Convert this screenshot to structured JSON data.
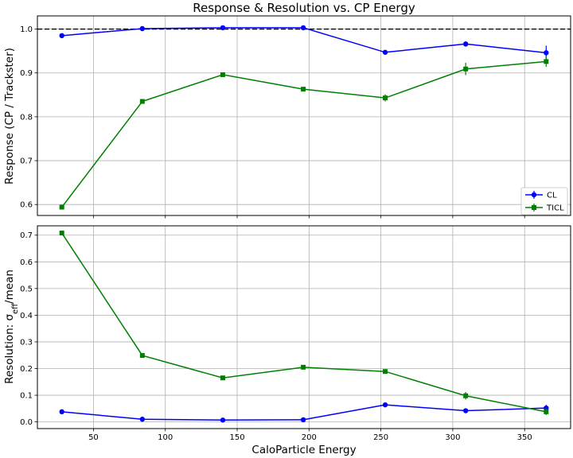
{
  "chart_data": [
    {
      "type": "line",
      "title": "Response & Resolution vs. CP Energy",
      "xlabel": "",
      "ylabel": "Response (CP / Trackster)",
      "xlim": [
        11,
        382
      ],
      "ylim": [
        0.575,
        1.03
      ],
      "xticks": [
        50,
        100,
        150,
        200,
        250,
        300,
        350
      ],
      "show_xtick_labels": false,
      "yticks": [
        0.6,
        0.7,
        0.8,
        0.9,
        1.0
      ],
      "ytick_labels": [
        "0.6",
        "0.7",
        "0.8",
        "0.9",
        "1.0"
      ],
      "grid": true,
      "reference_line": 1.0,
      "legend": "lower-right",
      "x": [
        28,
        84,
        140,
        196,
        253,
        309,
        365
      ],
      "series": [
        {
          "name": "CL",
          "color": "#0000ff",
          "marker": "circle",
          "values": [
            0.985,
            1.001,
            1.003,
            1.003,
            0.947,
            0.966,
            0.946
          ],
          "errors": [
            0.003,
            0.002,
            0.003,
            0.003,
            0.004,
            0.006,
            0.016
          ]
        },
        {
          "name": "TICL",
          "color": "#008000",
          "marker": "square",
          "values": [
            0.594,
            0.835,
            0.896,
            0.863,
            0.843,
            0.909,
            0.926
          ],
          "errors": [
            0.003,
            0.004,
            0.004,
            0.004,
            0.008,
            0.014,
            0.012
          ]
        }
      ]
    },
    {
      "type": "line",
      "title": "",
      "xlabel": "CaloParticle Energy",
      "ylabel": "Resolution: σ_eff/mean",
      "xlim": [
        11,
        382
      ],
      "ylim": [
        -0.025,
        0.735
      ],
      "xticks": [
        50,
        100,
        150,
        200,
        250,
        300,
        350
      ],
      "xtick_labels": [
        "50",
        "100",
        "150",
        "200",
        "250",
        "300",
        "350"
      ],
      "yticks": [
        0.0,
        0.1,
        0.2,
        0.3,
        0.4,
        0.5,
        0.6,
        0.7
      ],
      "ytick_labels": [
        "0.0",
        "0.1",
        "0.2",
        "0.3",
        "0.4",
        "0.5",
        "0.6",
        "0.7"
      ],
      "grid": true,
      "x": [
        28,
        84,
        140,
        196,
        253,
        309,
        365
      ],
      "series": [
        {
          "name": "CL",
          "color": "#0000ff",
          "marker": "circle",
          "values": [
            0.038,
            0.01,
            0.007,
            0.008,
            0.064,
            0.042,
            0.052
          ],
          "errors": [
            0.003,
            0.002,
            0.002,
            0.002,
            0.004,
            0.006,
            0.012
          ]
        },
        {
          "name": "TICL",
          "color": "#008000",
          "marker": "square",
          "values": [
            0.708,
            0.249,
            0.165,
            0.205,
            0.189,
            0.098,
            0.038
          ],
          "errors": [
            0.004,
            0.004,
            0.004,
            0.004,
            0.006,
            0.014,
            0.012
          ]
        }
      ]
    }
  ]
}
